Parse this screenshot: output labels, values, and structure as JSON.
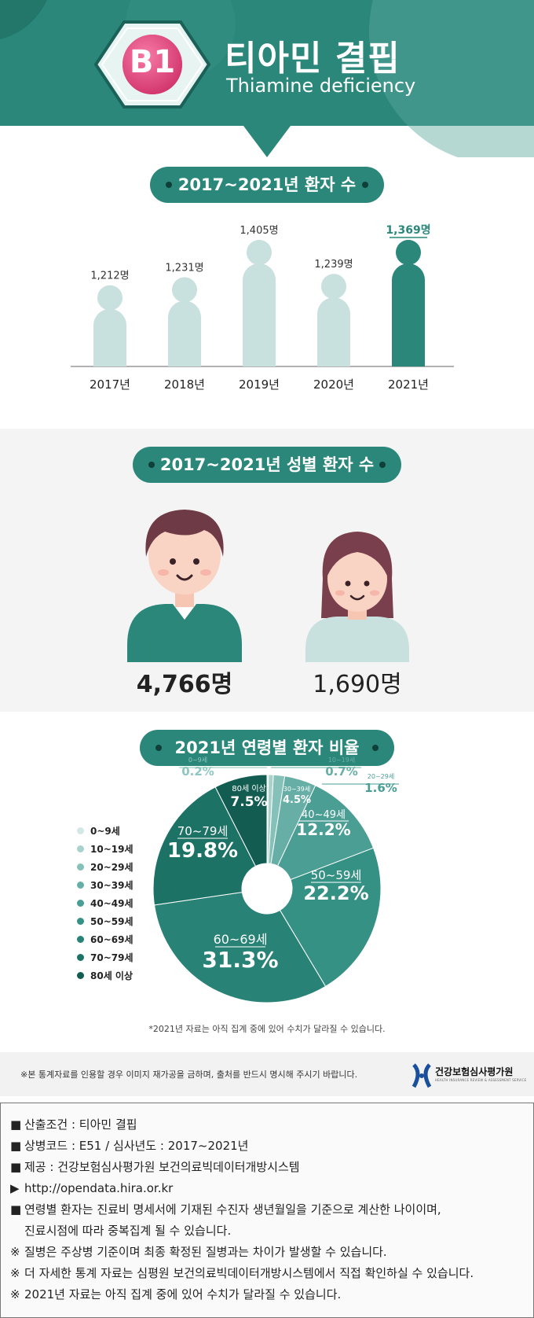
{
  "header": {
    "badge": "B1",
    "title_ko": "티아민 결핍",
    "title_en": "Thiamine deficiency"
  },
  "colors": {
    "teal_dark": "#1f7a6d",
    "teal": "#2a877a",
    "bar_light": "#c8e0de",
    "bar_highlight": "#2a877a",
    "badge_pink": "#e8467f"
  },
  "section_titles": {
    "yearly": "2017~2021년 환자 수",
    "gender": "2017~2021년 성별 환자 수",
    "age": "2021년 연령별 환자 비율"
  },
  "chart_data": [
    {
      "type": "bar",
      "categories": [
        "2017년",
        "2018년",
        "2019년",
        "2020년",
        "2021년"
      ],
      "values": [
        1212,
        1231,
        1405,
        1239,
        1369
      ],
      "data_labels": [
        "1,212명",
        "1,231명",
        "1,405명",
        "1,239명",
        "1,369명"
      ],
      "highlight_index": 4,
      "title": "2017~2021년 환자 수",
      "ylim": [
        0,
        1450
      ]
    },
    {
      "type": "bar",
      "categories": [
        "male",
        "female"
      ],
      "values": [
        4766,
        1690
      ],
      "data_labels": [
        "4,766명",
        "1,690명"
      ],
      "icon_names": [
        "male-person-icon",
        "female-person-icon"
      ],
      "title": "2017~2021년 성별 환자 수"
    },
    {
      "type": "pie",
      "title": "2021년 연령별 환자 비율",
      "categories": [
        "0~9세",
        "10~19세",
        "20~29세",
        "30~39세",
        "40~49세",
        "50~59세",
        "60~69세",
        "70~79세",
        "80세 이상"
      ],
      "values": [
        0.2,
        0.7,
        1.6,
        4.5,
        12.2,
        22.2,
        31.3,
        19.8,
        7.5
      ],
      "value_labels": [
        "0.2%",
        "0.7%",
        "1.6%",
        "4.5%",
        "12.2%",
        "22.2%",
        "31.3%",
        "19.8%",
        "7.5%"
      ],
      "colors": [
        "#d3e8e5",
        "#aad2cc",
        "#86c1b9",
        "#67afa6",
        "#4a9e94",
        "#369185",
        "#288376",
        "#1d7266",
        "#135c52"
      ],
      "legend_position": "left",
      "donut": true
    }
  ],
  "legend_labels": [
    "0~9세",
    "10~19세",
    "20~29세",
    "30~39세",
    "40~49세",
    "50~59세",
    "60~69세",
    "70~79세",
    "80세 이상"
  ],
  "pie_note": "*2021년 자료는 아직 집계 중에 있어 수치가 달라질 수 있습니다.",
  "footer": {
    "notice": "※본 통계자료를 인용할 경우 이미지 재가공을 금하며, 출처를 반드시 명시해 주시기 바랍니다.",
    "logo_name": "건강보험심사평가원",
    "logo_sub": "HEALTH INSURANCE REVIEW & ASSESSMENT SERVICE"
  },
  "info": [
    {
      "marker": "■",
      "text": "산출조건 : 티아민 결핍"
    },
    {
      "marker": "■",
      "text": "상병코드 : E51 / 심사년도 : 2017~2021년"
    },
    {
      "marker": "■",
      "text": "제공 : 건강보험심사평가원 보건의료빅데이터개방시스템"
    },
    {
      "marker": "▶",
      "text": "http://opendata.hira.or.kr"
    },
    {
      "marker": "■",
      "text": "연령별 환자는 진료비 명세서에 기재된 수진자 생년월일을 기준으로 계산한 나이이며,"
    },
    {
      "marker": "",
      "text": "진료시점에 따라 중복집계 될 수 있습니다."
    },
    {
      "marker": "※",
      "text": "질병은 주상병 기준이며 최종 확정된 질병과는 차이가 발생할 수 있습니다."
    },
    {
      "marker": "※",
      "text": "더 자세한 통계 자료는 심평원 보건의료빅데이터개방시스템에서 직접 확인하실 수 있습니다."
    },
    {
      "marker": "※",
      "text": "2021년 자료는 아직 집계 중에 있어 수치가 달라질 수 있습니다."
    }
  ]
}
